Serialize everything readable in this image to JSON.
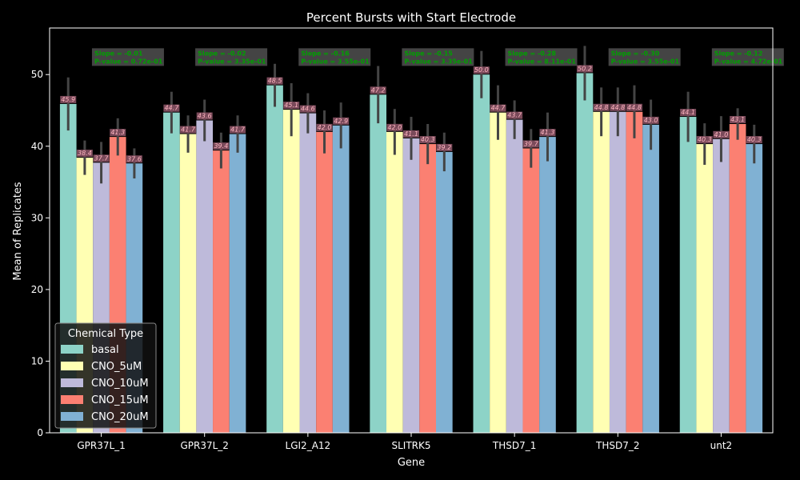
{
  "chart_data": {
    "type": "bar",
    "title": "Percent Bursts with Start Electrode",
    "xlabel": "Gene",
    "ylabel": "Mean of Replicates",
    "ylim": [
      0,
      56.5
    ],
    "yticks": [
      0,
      10,
      20,
      30,
      40,
      50
    ],
    "categories": [
      "GPR37L_1",
      "GPR37L_2",
      "LGI2_A12",
      "SLITRK5",
      "THSD7_1",
      "THSD7_2",
      "unt2"
    ],
    "legend": {
      "title": "Chemical Type",
      "placement": "lower-left"
    },
    "series": [
      {
        "name": "basal",
        "color": "#8dd3c7",
        "values": [
          45.9,
          44.7,
          48.5,
          47.2,
          50.0,
          50.2,
          44.1
        ],
        "err": [
          3.7,
          2.9,
          3.0,
          4.0,
          3.3,
          3.8,
          3.5
        ]
      },
      {
        "name": "CNO_5uM",
        "color": "#ffffb3",
        "values": [
          38.4,
          41.7,
          45.1,
          42.0,
          44.7,
          44.8,
          40.3
        ],
        "err": [
          2.4,
          2.6,
          3.7,
          3.2,
          3.8,
          3.4,
          2.9
        ]
      },
      {
        "name": "CNO_10uM",
        "color": "#bebada",
        "values": [
          37.7,
          43.6,
          44.6,
          41.1,
          43.7,
          44.8,
          41.0
        ],
        "err": [
          2.9,
          2.9,
          2.8,
          3.0,
          2.7,
          3.4,
          3.2
        ]
      },
      {
        "name": "CNO_15uM",
        "color": "#fb8072",
        "values": [
          41.3,
          39.4,
          42.0,
          40.3,
          39.7,
          44.8,
          43.1
        ],
        "err": [
          2.6,
          2.5,
          3.0,
          2.8,
          2.7,
          3.7,
          2.2
        ]
      },
      {
        "name": "CNO_20uM",
        "color": "#80b1d3",
        "values": [
          37.6,
          41.7,
          42.9,
          39.2,
          41.3,
          43.0,
          40.3
        ],
        "err": [
          2.1,
          2.6,
          3.2,
          2.7,
          3.4,
          3.5,
          2.7
        ]
      }
    ],
    "annotations": [
      {
        "line1": "Slope = -0.01",
        "line2": "P-value = 0.72e-01"
      },
      {
        "line1": "Slope = -0.02",
        "line2": "P-value = 3.35e-01"
      },
      {
        "line1": "Slope = -0.16",
        "line2": "P-value = 3.55e-01"
      },
      {
        "line1": "Slope = -0.15",
        "line2": "P-value = 3.35e-01"
      },
      {
        "line1": "Slope = -0.28",
        "line2": "P-value = 8.11e-01"
      },
      {
        "line1": "Slope = -0.30",
        "line2": "P-value = 3.55e-01"
      },
      {
        "line1": "Slope = -0.12",
        "line2": "P-value = 4.72e-01"
      }
    ],
    "colors": {
      "background": "#000000",
      "text": "#ffffff",
      "annotation_text": "#00a000",
      "annotation_bg": "#444444",
      "value_label_bg": "#7a4a5a",
      "value_label_text": "#ffb6c1"
    }
  }
}
